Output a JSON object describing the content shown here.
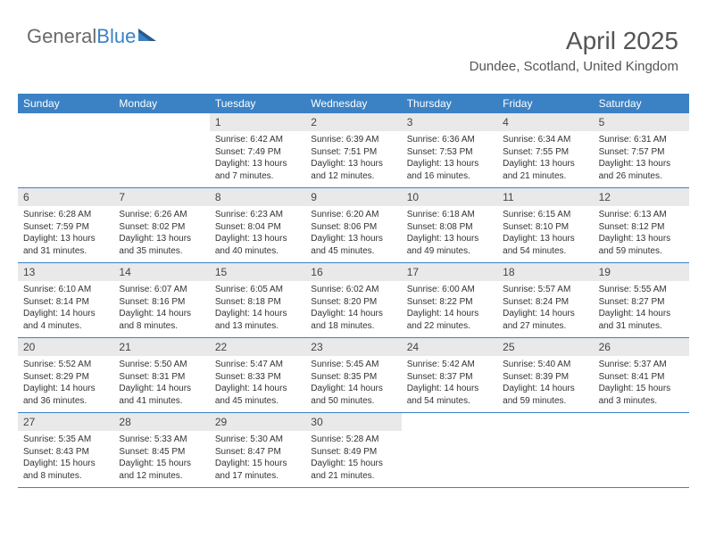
{
  "logo": {
    "part1": "General",
    "part2": "Blue"
  },
  "title": "April 2025",
  "subtitle": "Dundee, Scotland, United Kingdom",
  "colors": {
    "accent": "#3b82c4",
    "headerGray": "#e9e9e9",
    "text": "#333333",
    "logoGray": "#6a6a6a",
    "background": "#ffffff"
  },
  "dayNames": [
    "Sunday",
    "Monday",
    "Tuesday",
    "Wednesday",
    "Thursday",
    "Friday",
    "Saturday"
  ],
  "weeks": [
    {
      "nums": [
        "",
        "",
        "1",
        "2",
        "3",
        "4",
        "5"
      ],
      "cells": [
        null,
        null,
        {
          "sunrise": "Sunrise: 6:42 AM",
          "sunset": "Sunset: 7:49 PM",
          "daylight": "Daylight: 13 hours and 7 minutes."
        },
        {
          "sunrise": "Sunrise: 6:39 AM",
          "sunset": "Sunset: 7:51 PM",
          "daylight": "Daylight: 13 hours and 12 minutes."
        },
        {
          "sunrise": "Sunrise: 6:36 AM",
          "sunset": "Sunset: 7:53 PM",
          "daylight": "Daylight: 13 hours and 16 minutes."
        },
        {
          "sunrise": "Sunrise: 6:34 AM",
          "sunset": "Sunset: 7:55 PM",
          "daylight": "Daylight: 13 hours and 21 minutes."
        },
        {
          "sunrise": "Sunrise: 6:31 AM",
          "sunset": "Sunset: 7:57 PM",
          "daylight": "Daylight: 13 hours and 26 minutes."
        }
      ]
    },
    {
      "nums": [
        "6",
        "7",
        "8",
        "9",
        "10",
        "11",
        "12"
      ],
      "cells": [
        {
          "sunrise": "Sunrise: 6:28 AM",
          "sunset": "Sunset: 7:59 PM",
          "daylight": "Daylight: 13 hours and 31 minutes."
        },
        {
          "sunrise": "Sunrise: 6:26 AM",
          "sunset": "Sunset: 8:02 PM",
          "daylight": "Daylight: 13 hours and 35 minutes."
        },
        {
          "sunrise": "Sunrise: 6:23 AM",
          "sunset": "Sunset: 8:04 PM",
          "daylight": "Daylight: 13 hours and 40 minutes."
        },
        {
          "sunrise": "Sunrise: 6:20 AM",
          "sunset": "Sunset: 8:06 PM",
          "daylight": "Daylight: 13 hours and 45 minutes."
        },
        {
          "sunrise": "Sunrise: 6:18 AM",
          "sunset": "Sunset: 8:08 PM",
          "daylight": "Daylight: 13 hours and 49 minutes."
        },
        {
          "sunrise": "Sunrise: 6:15 AM",
          "sunset": "Sunset: 8:10 PM",
          "daylight": "Daylight: 13 hours and 54 minutes."
        },
        {
          "sunrise": "Sunrise: 6:13 AM",
          "sunset": "Sunset: 8:12 PM",
          "daylight": "Daylight: 13 hours and 59 minutes."
        }
      ]
    },
    {
      "nums": [
        "13",
        "14",
        "15",
        "16",
        "17",
        "18",
        "19"
      ],
      "cells": [
        {
          "sunrise": "Sunrise: 6:10 AM",
          "sunset": "Sunset: 8:14 PM",
          "daylight": "Daylight: 14 hours and 4 minutes."
        },
        {
          "sunrise": "Sunrise: 6:07 AM",
          "sunset": "Sunset: 8:16 PM",
          "daylight": "Daylight: 14 hours and 8 minutes."
        },
        {
          "sunrise": "Sunrise: 6:05 AM",
          "sunset": "Sunset: 8:18 PM",
          "daylight": "Daylight: 14 hours and 13 minutes."
        },
        {
          "sunrise": "Sunrise: 6:02 AM",
          "sunset": "Sunset: 8:20 PM",
          "daylight": "Daylight: 14 hours and 18 minutes."
        },
        {
          "sunrise": "Sunrise: 6:00 AM",
          "sunset": "Sunset: 8:22 PM",
          "daylight": "Daylight: 14 hours and 22 minutes."
        },
        {
          "sunrise": "Sunrise: 5:57 AM",
          "sunset": "Sunset: 8:24 PM",
          "daylight": "Daylight: 14 hours and 27 minutes."
        },
        {
          "sunrise": "Sunrise: 5:55 AM",
          "sunset": "Sunset: 8:27 PM",
          "daylight": "Daylight: 14 hours and 31 minutes."
        }
      ]
    },
    {
      "nums": [
        "20",
        "21",
        "22",
        "23",
        "24",
        "25",
        "26"
      ],
      "cells": [
        {
          "sunrise": "Sunrise: 5:52 AM",
          "sunset": "Sunset: 8:29 PM",
          "daylight": "Daylight: 14 hours and 36 minutes."
        },
        {
          "sunrise": "Sunrise: 5:50 AM",
          "sunset": "Sunset: 8:31 PM",
          "daylight": "Daylight: 14 hours and 41 minutes."
        },
        {
          "sunrise": "Sunrise: 5:47 AM",
          "sunset": "Sunset: 8:33 PM",
          "daylight": "Daylight: 14 hours and 45 minutes."
        },
        {
          "sunrise": "Sunrise: 5:45 AM",
          "sunset": "Sunset: 8:35 PM",
          "daylight": "Daylight: 14 hours and 50 minutes."
        },
        {
          "sunrise": "Sunrise: 5:42 AM",
          "sunset": "Sunset: 8:37 PM",
          "daylight": "Daylight: 14 hours and 54 minutes."
        },
        {
          "sunrise": "Sunrise: 5:40 AM",
          "sunset": "Sunset: 8:39 PM",
          "daylight": "Daylight: 14 hours and 59 minutes."
        },
        {
          "sunrise": "Sunrise: 5:37 AM",
          "sunset": "Sunset: 8:41 PM",
          "daylight": "Daylight: 15 hours and 3 minutes."
        }
      ]
    },
    {
      "nums": [
        "27",
        "28",
        "29",
        "30",
        "",
        "",
        ""
      ],
      "cells": [
        {
          "sunrise": "Sunrise: 5:35 AM",
          "sunset": "Sunset: 8:43 PM",
          "daylight": "Daylight: 15 hours and 8 minutes."
        },
        {
          "sunrise": "Sunrise: 5:33 AM",
          "sunset": "Sunset: 8:45 PM",
          "daylight": "Daylight: 15 hours and 12 minutes."
        },
        {
          "sunrise": "Sunrise: 5:30 AM",
          "sunset": "Sunset: 8:47 PM",
          "daylight": "Daylight: 15 hours and 17 minutes."
        },
        {
          "sunrise": "Sunrise: 5:28 AM",
          "sunset": "Sunset: 8:49 PM",
          "daylight": "Daylight: 15 hours and 21 minutes."
        },
        null,
        null,
        null
      ]
    }
  ]
}
